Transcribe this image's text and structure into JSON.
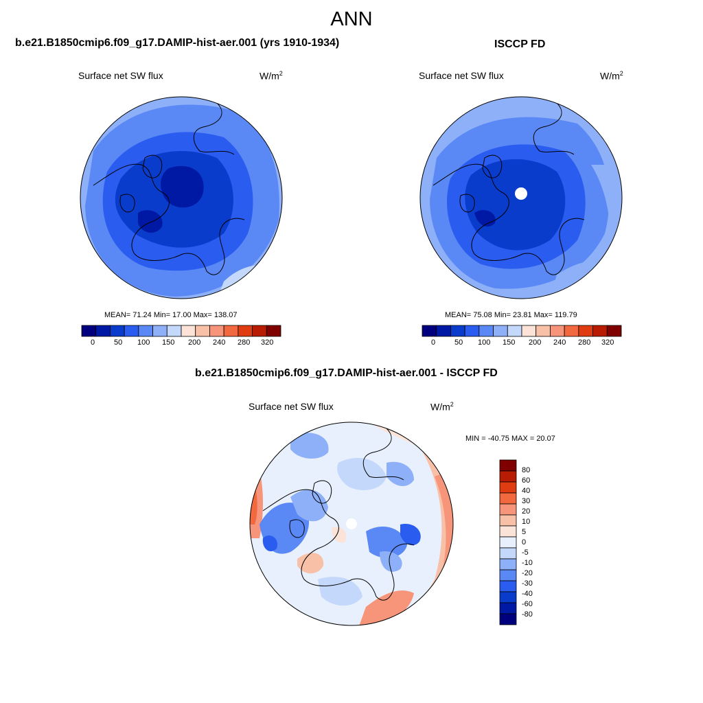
{
  "figure": {
    "season": "ANN",
    "variable": "Surface net SW flux",
    "units_base": "W/m",
    "units_exp": "2"
  },
  "panels": [
    {
      "id": "test",
      "title": "b.e21.B1850cmip6.f09_g17.DAMIP-hist-aer.001 (yrs 1910-1934)",
      "stats": "MEAN=  71.24  Min=  17.00  Max= 138.07",
      "polar_hole": false
    },
    {
      "id": "obs",
      "title": "ISCCP FD",
      "stats": "MEAN=  75.08  Min=  23.81  Max= 119.79",
      "polar_hole": true
    }
  ],
  "diff_panel": {
    "title": "b.e21.B1850cmip6.f09_g17.DAMIP-hist-aer.001 - ISCCP FD",
    "stats": "MIN = -40.75 MAX =  20.07"
  },
  "colorbar_main": {
    "ticks": [
      "0",
      "50",
      "100",
      "150",
      "200",
      "240",
      "280",
      "320"
    ],
    "colors": [
      "#00007f",
      "#0019a5",
      "#0a3ccc",
      "#2a5cf0",
      "#5a88f5",
      "#8db0f8",
      "#c4d8fb",
      "#fbe3d8",
      "#f9c0a8",
      "#f6957a",
      "#f2683f",
      "#e03c12",
      "#b81d04",
      "#800000"
    ]
  },
  "colorbar_diff": {
    "ticks": [
      "80",
      "60",
      "40",
      "30",
      "20",
      "10",
      "5",
      "0",
      "-5",
      "-10",
      "-20",
      "-30",
      "-40",
      "-60",
      "-80"
    ],
    "colors": [
      "#800000",
      "#b81d04",
      "#e03c12",
      "#f2683f",
      "#f6957a",
      "#f9c0a8",
      "#fbe3d8",
      "#e8f0fd",
      "#c4d8fb",
      "#8db0f8",
      "#5a88f5",
      "#2a5cf0",
      "#0a3ccc",
      "#0019a5",
      "#00007f"
    ]
  }
}
